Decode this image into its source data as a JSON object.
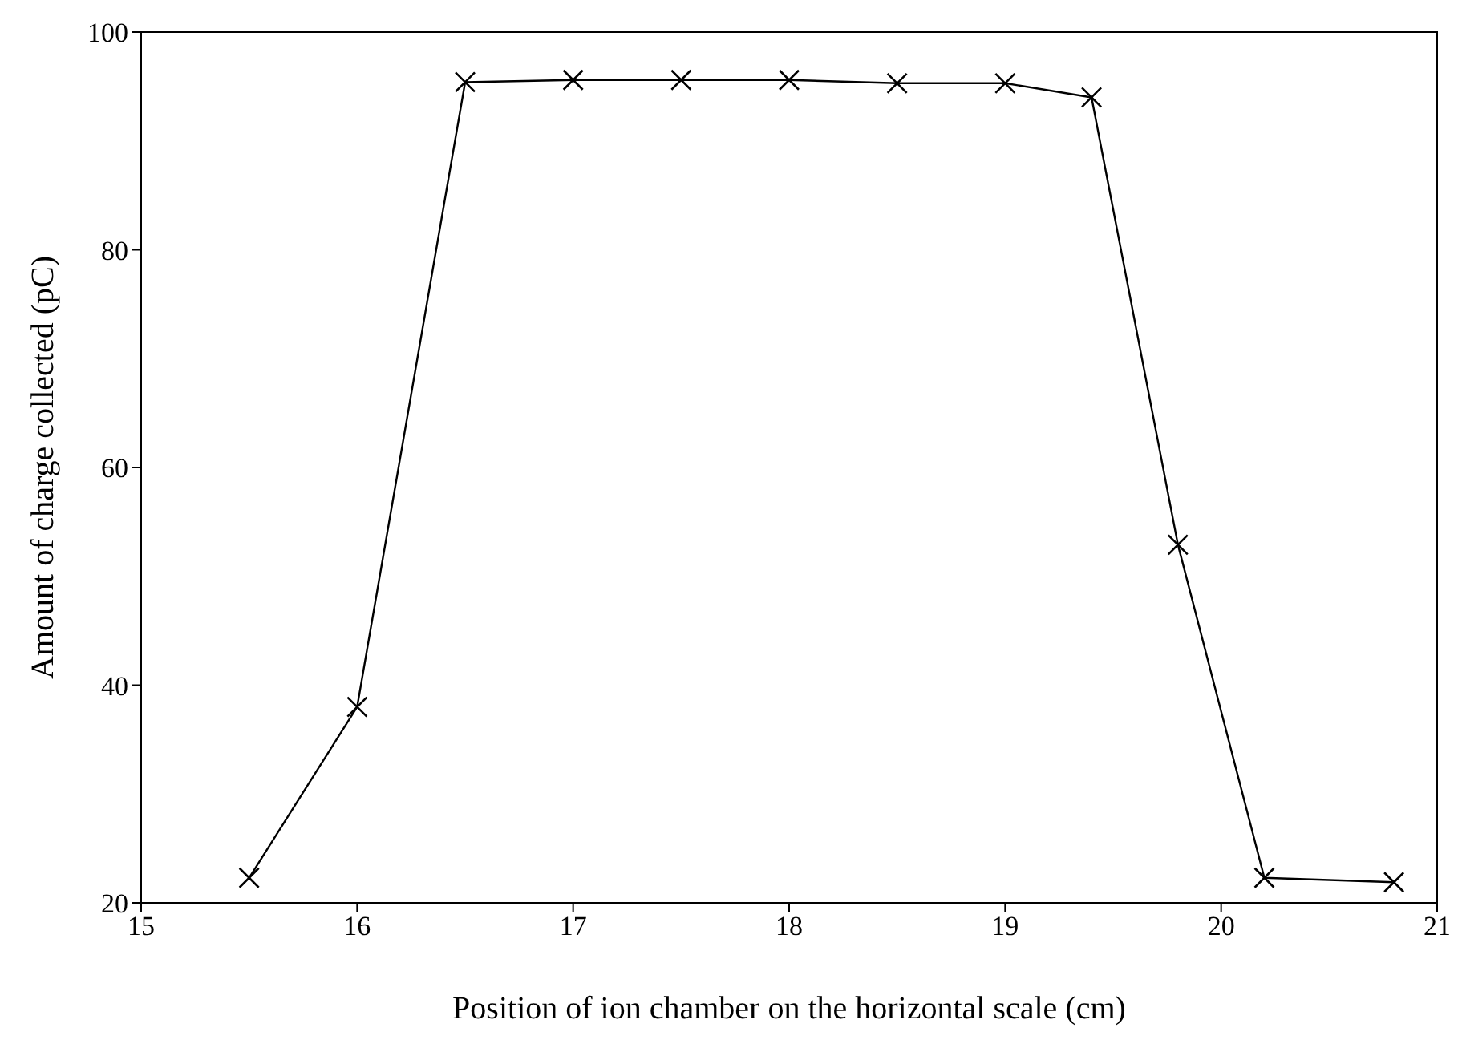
{
  "chart_data": {
    "type": "line",
    "xlabel": "Position of ion chamber on the horizontal scale (cm)",
    "ylabel": "Amount of charge collected (pC)",
    "x": [
      15.5,
      16,
      16.5,
      17,
      17.5,
      18,
      18.5,
      19,
      19.4,
      19.8,
      20.2,
      20.8
    ],
    "series": [
      {
        "color": "#000000",
        "values": [
          22.3,
          38.0,
          95.4,
          95.6,
          95.6,
          95.6,
          95.3,
          95.3,
          94.0,
          52.9,
          22.3,
          21.9
        ]
      }
    ],
    "xlim": [
      15,
      21
    ],
    "xticks": [
      15,
      16,
      17,
      18,
      19,
      20,
      21
    ],
    "ylim": [
      20,
      100
    ],
    "yticks": [
      20,
      40,
      60,
      80,
      100
    ],
    "grid": false,
    "legend": false,
    "marker": "cross",
    "line_style": "solid"
  }
}
